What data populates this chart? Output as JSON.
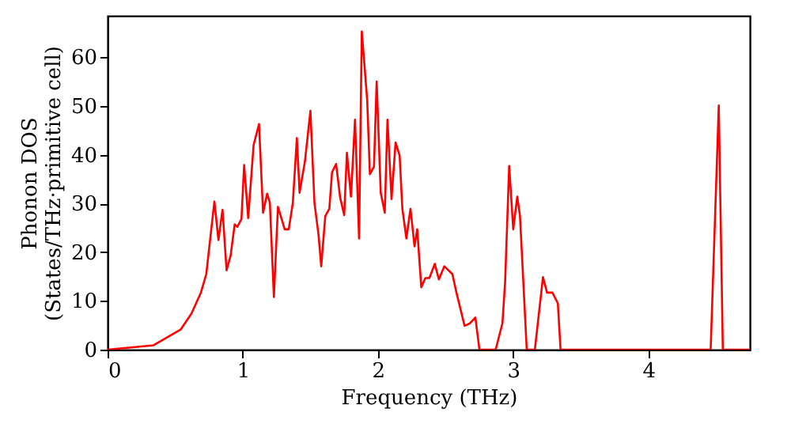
{
  "chart_data": {
    "type": "line",
    "xlabel": "Frequency (THz)",
    "ylabel": "Phonon DOS\n(States/THz·primitive cell)",
    "xlim": [
      0,
      4.75
    ],
    "xticks": [
      0,
      1,
      2,
      3,
      4
    ],
    "ylim": [
      0,
      68.5
    ],
    "yticks": [
      0,
      10,
      20,
      30,
      40,
      50,
      60
    ],
    "grid": false,
    "marker": "none",
    "line_style": "solid",
    "series": [
      {
        "color": "#ff0000",
        "x": [
          0,
          0.34,
          0.54,
          0.62,
          0.69,
          0.73,
          0.79,
          0.82,
          0.85,
          0.88,
          0.91,
          0.94,
          0.96,
          0.99,
          1.01,
          1.04,
          1.08,
          1.12,
          1.15,
          1.18,
          1.2,
          1.23,
          1.26,
          1.31,
          1.34,
          1.37,
          1.4,
          1.42,
          1.46,
          1.5,
          1.53,
          1.56,
          1.58,
          1.61,
          1.64,
          1.66,
          1.69,
          1.72,
          1.75,
          1.77,
          1.8,
          1.83,
          1.86,
          1.88,
          1.92,
          1.94,
          1.97,
          1.99,
          2.02,
          2.05,
          2.07,
          2.1,
          2.13,
          2.16,
          2.18,
          2.21,
          2.24,
          2.27,
          2.29,
          2.32,
          2.35,
          2.38,
          2.42,
          2.45,
          2.49,
          2.55,
          2.58,
          2.64,
          2.68,
          2.72,
          2.75,
          2.87,
          2.92,
          2.94,
          2.97,
          3.0,
          3.03,
          3.05,
          3.1,
          3.16,
          3.22,
          3.25,
          3.29,
          3.33,
          3.35,
          4.46,
          4.52,
          4.55,
          4.75
        ],
        "values": [
          0,
          0.9,
          4.1,
          7.4,
          11.7,
          15.5,
          30.4,
          22.5,
          28.7,
          16.3,
          19.3,
          25.7,
          25.2,
          26.8,
          37.9,
          27,
          42,
          46.3,
          28.1,
          32,
          30.2,
          10.8,
          29.3,
          24.7,
          24.7,
          30.1,
          43.4,
          32.2,
          38.7,
          49,
          30.1,
          23.6,
          17.1,
          27.4,
          28.9,
          36.4,
          38.1,
          31.2,
          27.6,
          40.4,
          31.4,
          47.2,
          22.8,
          65.3,
          51.2,
          36,
          37.5,
          55,
          32.2,
          28.1,
          47.2,
          30.9,
          42.5,
          39.8,
          28.9,
          22.8,
          28.9,
          21.2,
          24.7,
          12.8,
          14.7,
          14.7,
          17.6,
          14.4,
          17.1,
          15.5,
          11.7,
          4.9,
          5.4,
          6.6,
          0,
          0,
          5.4,
          13.9,
          37.7,
          24.7,
          31.4,
          27.4,
          0,
          0,
          14.9,
          11.7,
          11.7,
          9.5,
          0,
          0,
          50.1,
          0,
          0
        ]
      }
    ]
  }
}
